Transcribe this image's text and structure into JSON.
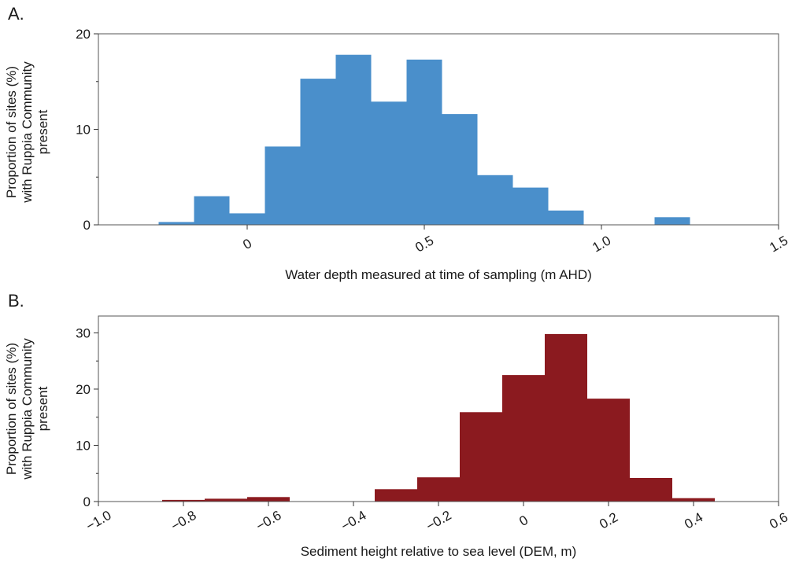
{
  "chart_data": [
    {
      "type": "bar",
      "panel_label": "A.",
      "xlabel": "Water depth measured at time of sampling (m AHD)",
      "ylabel_lines": [
        "Proportion of sites (%)",
        "with Ruppia Community",
        "present"
      ],
      "xlim": [
        -0.42,
        1.5
      ],
      "ylim": [
        0,
        20
      ],
      "x_ticks": [
        0,
        0.5,
        1.0,
        1.5
      ],
      "x_tick_labels": [
        "0",
        "0.5",
        "1.0",
        "1.5"
      ],
      "y_ticks": [
        0,
        10,
        20
      ],
      "y_tick_labels": [
        "0",
        "10",
        "20"
      ],
      "color": "#4a8fcb",
      "bin_width": 0.1,
      "bins": [
        {
          "x0": -0.25,
          "x1": -0.15,
          "value": 0.3
        },
        {
          "x0": -0.15,
          "x1": -0.05,
          "value": 3.0
        },
        {
          "x0": -0.05,
          "x1": 0.05,
          "value": 1.2
        },
        {
          "x0": 0.05,
          "x1": 0.15,
          "value": 8.2
        },
        {
          "x0": 0.15,
          "x1": 0.25,
          "value": 15.3
        },
        {
          "x0": 0.25,
          "x1": 0.35,
          "value": 17.8
        },
        {
          "x0": 0.35,
          "x1": 0.45,
          "value": 12.9
        },
        {
          "x0": 0.45,
          "x1": 0.55,
          "value": 17.3
        },
        {
          "x0": 0.55,
          "x1": 0.65,
          "value": 11.6
        },
        {
          "x0": 0.65,
          "x1": 0.75,
          "value": 5.2
        },
        {
          "x0": 0.75,
          "x1": 0.85,
          "value": 3.9
        },
        {
          "x0": 0.85,
          "x1": 0.95,
          "value": 1.5
        },
        {
          "x0": 1.15,
          "x1": 1.25,
          "value": 0.8
        }
      ]
    },
    {
      "type": "bar",
      "panel_label": "B.",
      "xlabel": "Sediment height relative to sea level (DEM, m)",
      "ylabel_lines": [
        "Proportion of sites (%)",
        "with Ruppia Community",
        "present"
      ],
      "xlim": [
        -1.0,
        0.6
      ],
      "ylim": [
        0,
        33
      ],
      "x_ticks": [
        -1.0,
        -0.8,
        -0.6,
        -0.4,
        -0.2,
        0,
        0.2,
        0.4,
        0.6
      ],
      "x_tick_labels": [
        "−1.0",
        "−0.8",
        "−0.6",
        "−0.4",
        "−0.2",
        "0",
        "0.2",
        "0.4",
        "0.6"
      ],
      "y_ticks": [
        0,
        10,
        20,
        30
      ],
      "y_tick_labels": [
        "0",
        "10",
        "20",
        "30"
      ],
      "color": "#8b1a1f",
      "bin_width": 0.1,
      "bins": [
        {
          "x0": -0.85,
          "x1": -0.75,
          "value": 0.3
        },
        {
          "x0": -0.75,
          "x1": -0.65,
          "value": 0.5
        },
        {
          "x0": -0.65,
          "x1": -0.55,
          "value": 0.8
        },
        {
          "x0": -0.35,
          "x1": -0.25,
          "value": 2.2
        },
        {
          "x0": -0.25,
          "x1": -0.15,
          "value": 4.3
        },
        {
          "x0": -0.15,
          "x1": -0.05,
          "value": 15.9
        },
        {
          "x0": -0.05,
          "x1": 0.05,
          "value": 22.5
        },
        {
          "x0": 0.05,
          "x1": 0.15,
          "value": 29.8
        },
        {
          "x0": 0.15,
          "x1": 0.25,
          "value": 18.3
        },
        {
          "x0": 0.25,
          "x1": 0.35,
          "value": 4.2
        },
        {
          "x0": 0.35,
          "x1": 0.45,
          "value": 0.6
        }
      ]
    }
  ]
}
